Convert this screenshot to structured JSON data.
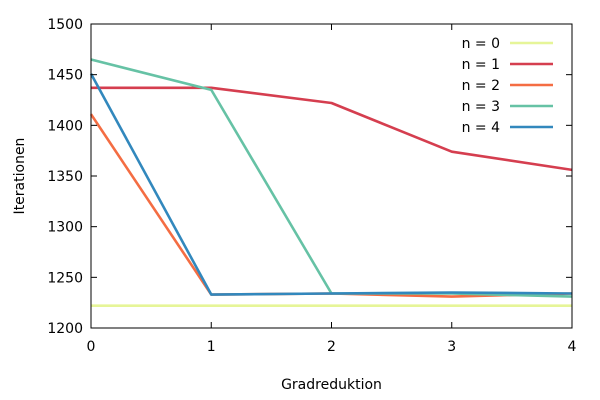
{
  "chart_data": {
    "type": "line",
    "xlabel": "Gradreduktion",
    "ylabel": "Iterationen",
    "x": [
      0,
      1,
      2,
      3,
      4
    ],
    "xlim": [
      0,
      4
    ],
    "ylim": [
      1200,
      1500
    ],
    "xticks": [
      0,
      1,
      2,
      3,
      4
    ],
    "yticks": [
      1200,
      1250,
      1300,
      1350,
      1400,
      1450,
      1500
    ],
    "grid": false,
    "legend_position": "top-right",
    "series": [
      {
        "name": "n = 0",
        "color": "#e6f598",
        "values": [
          1222,
          1222,
          1222,
          1222,
          1222
        ]
      },
      {
        "name": "n = 1",
        "color": "#d53e4f",
        "values": [
          1437,
          1437,
          1422,
          1374,
          1356
        ]
      },
      {
        "name": "n = 2",
        "color": "#f46d43",
        "values": [
          1411,
          1233,
          1234,
          1231,
          1234
        ]
      },
      {
        "name": "n = 3",
        "color": "#66c2a5",
        "values": [
          1465,
          1435,
          1234,
          1234,
          1231
        ]
      },
      {
        "name": "n = 4",
        "color": "#3288bd",
        "values": [
          1451,
          1233,
          1234,
          1235,
          1234
        ]
      }
    ]
  }
}
